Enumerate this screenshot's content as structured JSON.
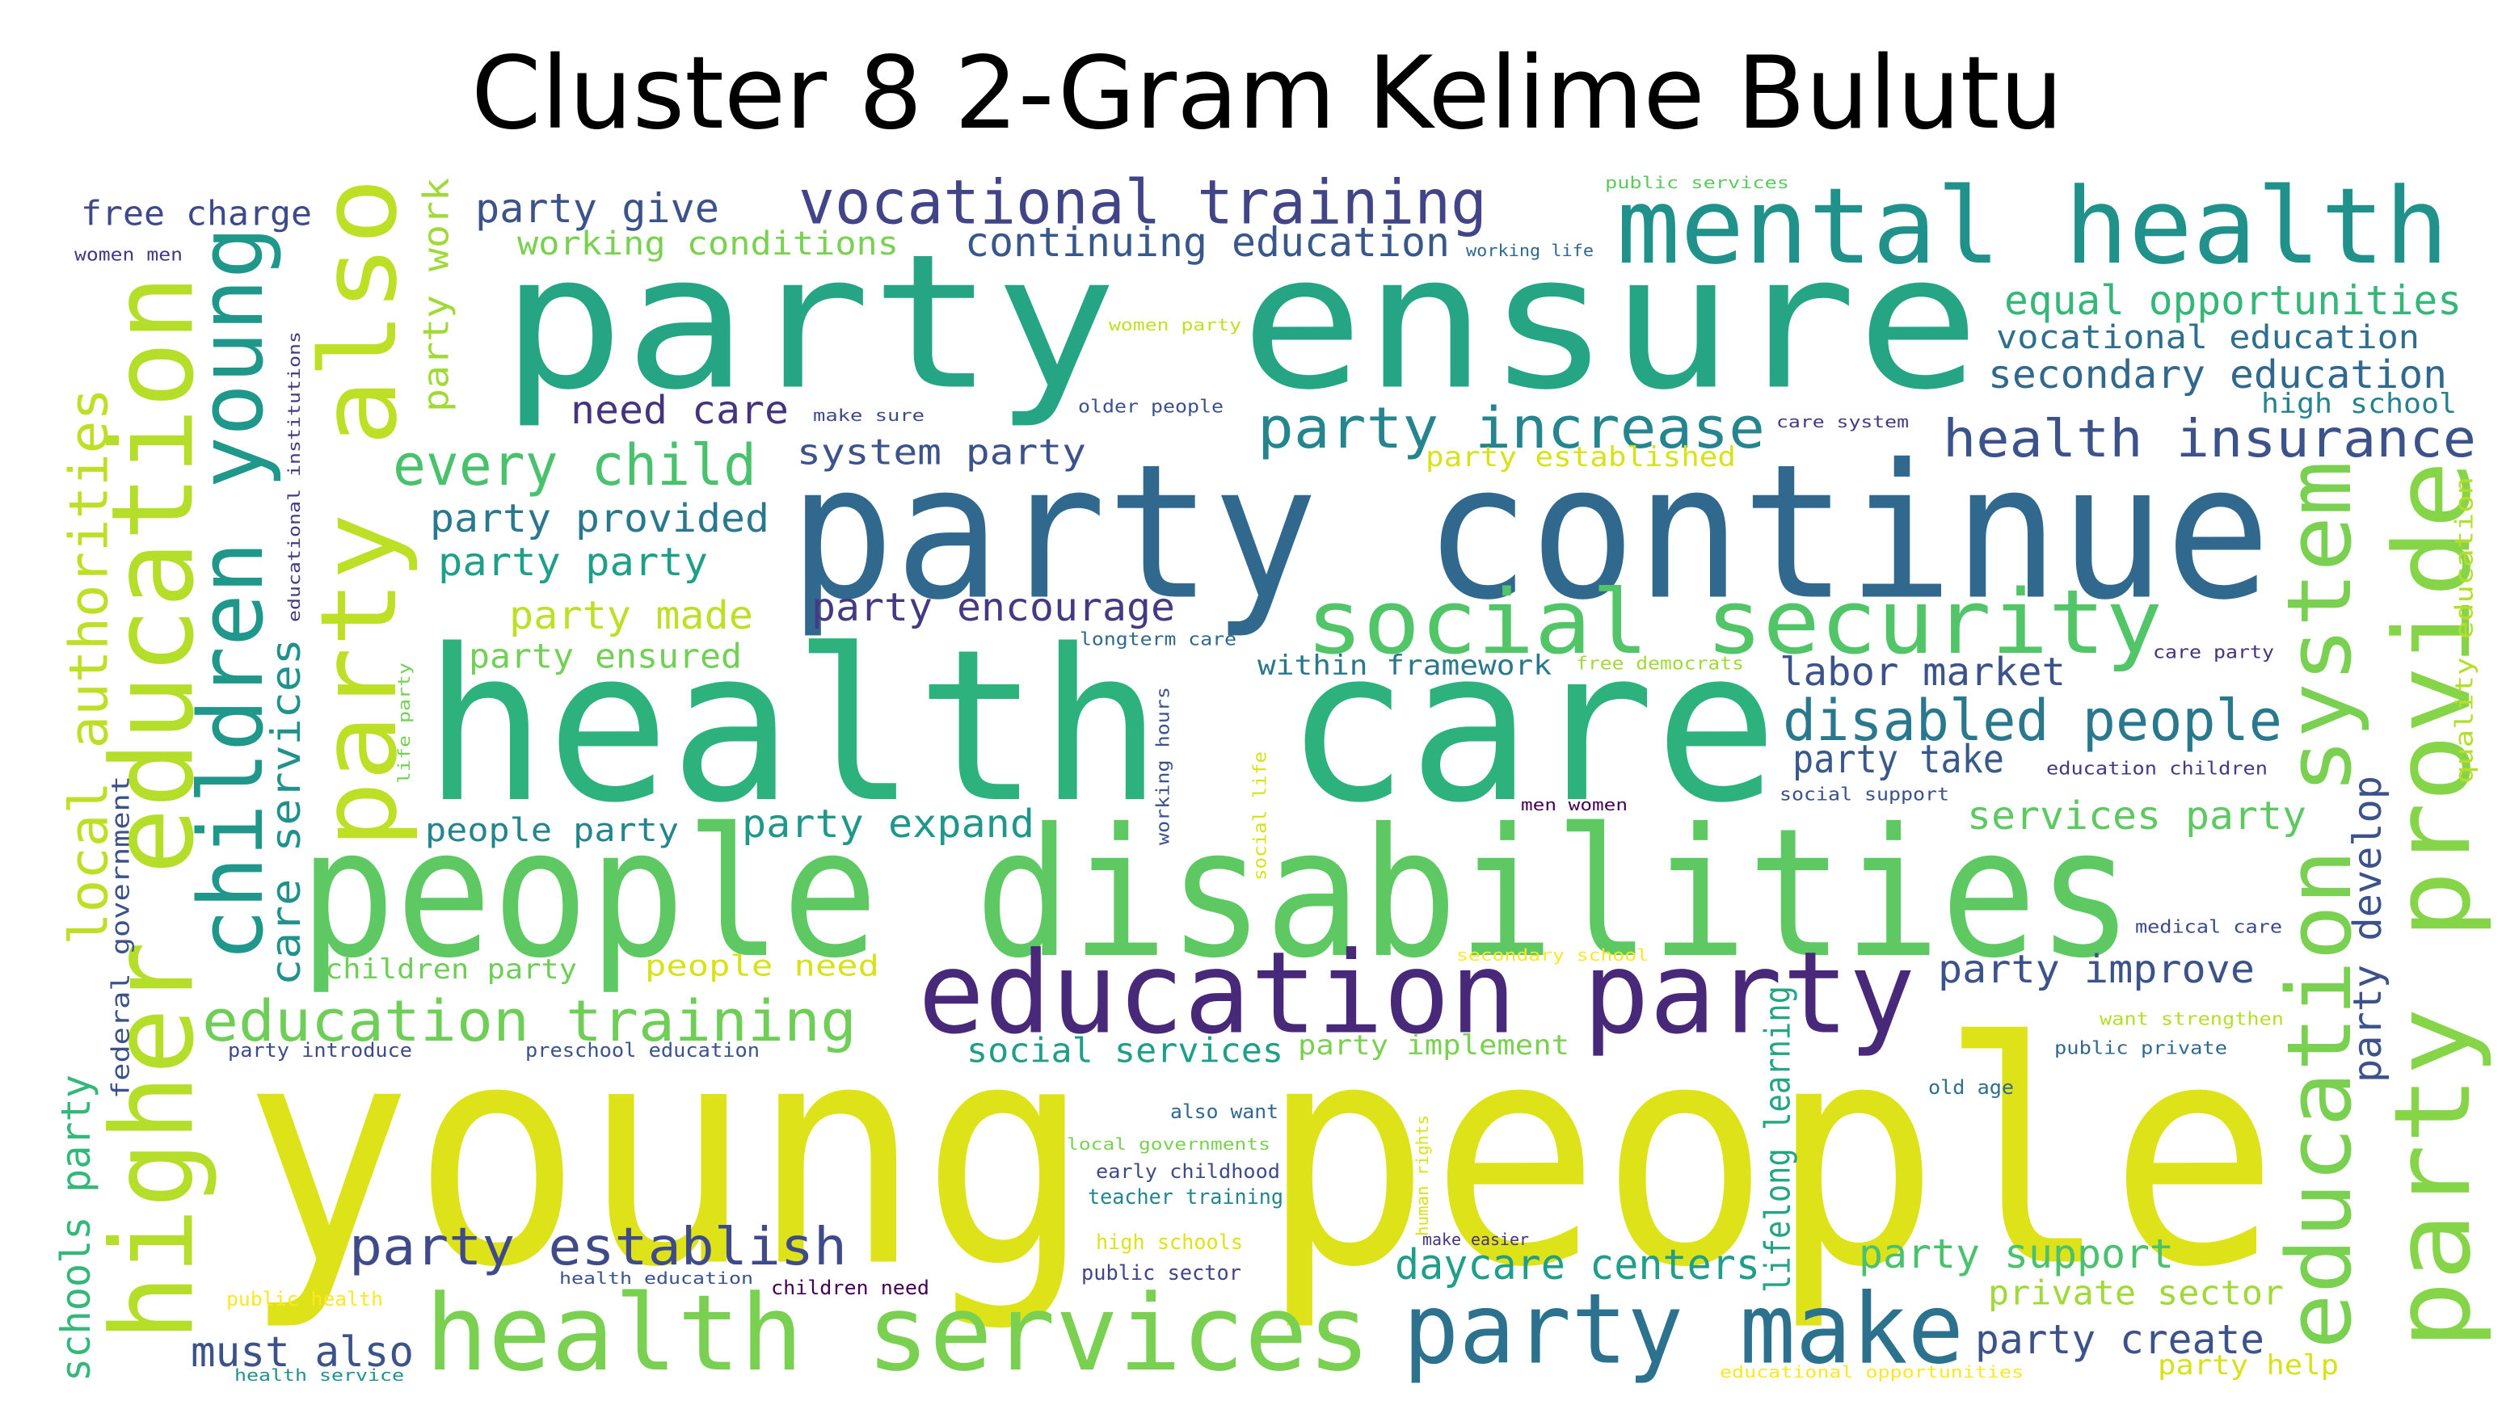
{
  "title": "Cluster 8 2-Gram Kelime Bulutu",
  "words": [
    {
      "text": "young people",
      "color": "#dde318"
    },
    {
      "text": "health care",
      "color": "#2db27d"
    },
    {
      "text": "party continue",
      "color": "#31688e"
    },
    {
      "text": "party ensure",
      "color": "#25a584"
    },
    {
      "text": "people disabilities",
      "color": "#5ec962"
    },
    {
      "text": "education party",
      "color": "#482878"
    },
    {
      "text": "health services",
      "color": "#7ad151"
    },
    {
      "text": "party make",
      "color": "#2c728e"
    },
    {
      "text": "mental health",
      "color": "#21918c"
    },
    {
      "text": "social security",
      "color": "#52c569"
    },
    {
      "text": "vocational training",
      "color": "#414487"
    },
    {
      "text": "party increase",
      "color": "#25858e"
    },
    {
      "text": "health insurance",
      "color": "#3b528b"
    },
    {
      "text": "disabled people",
      "color": "#2a788e"
    },
    {
      "text": "education training",
      "color": "#6ece58"
    },
    {
      "text": "party establish",
      "color": "#3e4a89"
    },
    {
      "text": "every child",
      "color": "#4ac16d"
    },
    {
      "text": "continuing education",
      "color": "#38588c"
    },
    {
      "text": "equal opportunities",
      "color": "#35b779"
    },
    {
      "text": "vocational education",
      "color": "#2e6e8e"
    },
    {
      "text": "secondary education",
      "color": "#31688e"
    },
    {
      "text": "high school",
      "color": "#26828e"
    },
    {
      "text": "party give",
      "color": "#3b528b"
    },
    {
      "text": "working conditions",
      "color": "#7ad151"
    },
    {
      "text": "free charge",
      "color": "#3e4989"
    },
    {
      "text": "women men",
      "color": "#443983"
    },
    {
      "text": "need care",
      "color": "#46337e"
    },
    {
      "text": "system party",
      "color": "#3b528b"
    },
    {
      "text": "party provided",
      "color": "#2a788e"
    },
    {
      "text": "party party",
      "color": "#1f9e89"
    },
    {
      "text": "party made",
      "color": "#bddf26"
    },
    {
      "text": "party encourage",
      "color": "#443983"
    },
    {
      "text": "party ensured",
      "color": "#73d056"
    },
    {
      "text": "within framework",
      "color": "#2a788e"
    },
    {
      "text": "labor market",
      "color": "#3b528b"
    },
    {
      "text": "party take",
      "color": "#38598c"
    },
    {
      "text": "services party",
      "color": "#5ec962"
    },
    {
      "text": "people party",
      "color": "#25858e"
    },
    {
      "text": "party expand",
      "color": "#1f988b"
    },
    {
      "text": "children party",
      "color": "#6ece58"
    },
    {
      "text": "people need",
      "color": "#d8e219"
    },
    {
      "text": "party improve",
      "color": "#3b528b"
    },
    {
      "text": "social services",
      "color": "#1f9e89"
    },
    {
      "text": "party implement",
      "color": "#7ad151"
    },
    {
      "text": "party introduce",
      "color": "#3e4a89"
    },
    {
      "text": "preschool education",
      "color": "#3b528b"
    },
    {
      "text": "daycare centers",
      "color": "#1f9e89"
    },
    {
      "text": "party support",
      "color": "#4ac16d"
    },
    {
      "text": "private sector",
      "color": "#a0da39"
    },
    {
      "text": "party create",
      "color": "#3b528b"
    },
    {
      "text": "party help",
      "color": "#d8e219"
    },
    {
      "text": "must also",
      "color": "#3b528b"
    },
    {
      "text": "also want",
      "color": "#31688e"
    },
    {
      "text": "local governments",
      "color": "#7ad151"
    },
    {
      "text": "early childhood",
      "color": "#3e4a89"
    },
    {
      "text": "teacher training",
      "color": "#25858e"
    },
    {
      "text": "high schools",
      "color": "#dde318"
    },
    {
      "text": "public sector",
      "color": "#414487"
    },
    {
      "text": "make easier",
      "color": "#46337e"
    },
    {
      "text": "health education",
      "color": "#3b528b"
    },
    {
      "text": "children need",
      "color": "#440154"
    },
    {
      "text": "public health",
      "color": "#fde725"
    },
    {
      "text": "health service",
      "color": "#21918c"
    },
    {
      "text": "educational opportunities",
      "color": "#fde725"
    },
    {
      "text": "old age",
      "color": "#2e6e8e"
    },
    {
      "text": "public private",
      "color": "#31688e"
    },
    {
      "text": "want strengthen",
      "color": "#b5de2b"
    },
    {
      "text": "medical care",
      "color": "#3e4989"
    },
    {
      "text": "secondary school",
      "color": "#fde725"
    },
    {
      "text": "men women",
      "color": "#440154"
    },
    {
      "text": "social support",
      "color": "#3b528b"
    },
    {
      "text": "education children",
      "color": "#443983"
    },
    {
      "text": "care party",
      "color": "#46337e"
    },
    {
      "text": "free democrats",
      "color": "#a0da39"
    },
    {
      "text": "longterm care",
      "color": "#31688e"
    },
    {
      "text": "party established",
      "color": "#d8e219"
    },
    {
      "text": "care system",
      "color": "#443983"
    },
    {
      "text": "older people",
      "color": "#3b528b"
    },
    {
      "text": "make sure",
      "color": "#3e4a89"
    },
    {
      "text": "women party",
      "color": "#c2df23"
    },
    {
      "text": "working life",
      "color": "#31688e"
    },
    {
      "text": "public services",
      "color": "#5ec962"
    },
    {
      "text": "higher education",
      "color": "#b5de2b"
    },
    {
      "text": "children young",
      "color": "#1f988b"
    },
    {
      "text": "party also",
      "color": "#bddf26"
    },
    {
      "text": "local authorities",
      "color": "#bddf26"
    },
    {
      "text": "schools party",
      "color": "#35b779"
    },
    {
      "text": "federal government",
      "color": "#3b528b"
    },
    {
      "text": "care services",
      "color": "#21918c"
    },
    {
      "text": "educational institutions",
      "color": "#443983"
    },
    {
      "text": "party work",
      "color": "#a0da39"
    },
    {
      "text": "life party",
      "color": "#73d056"
    },
    {
      "text": "working hours",
      "color": "#3b528b"
    },
    {
      "text": "social life",
      "color": "#d8e219"
    },
    {
      "text": "human rights",
      "color": "#d8e219"
    },
    {
      "text": "lifelong learning",
      "color": "#25a584"
    },
    {
      "text": "education system",
      "color": "#7ad151"
    },
    {
      "text": "party provide",
      "color": "#86d549"
    },
    {
      "text": "party develop",
      "color": "#3b528b"
    },
    {
      "text": "quality education",
      "color": "#b5de2b"
    }
  ]
}
